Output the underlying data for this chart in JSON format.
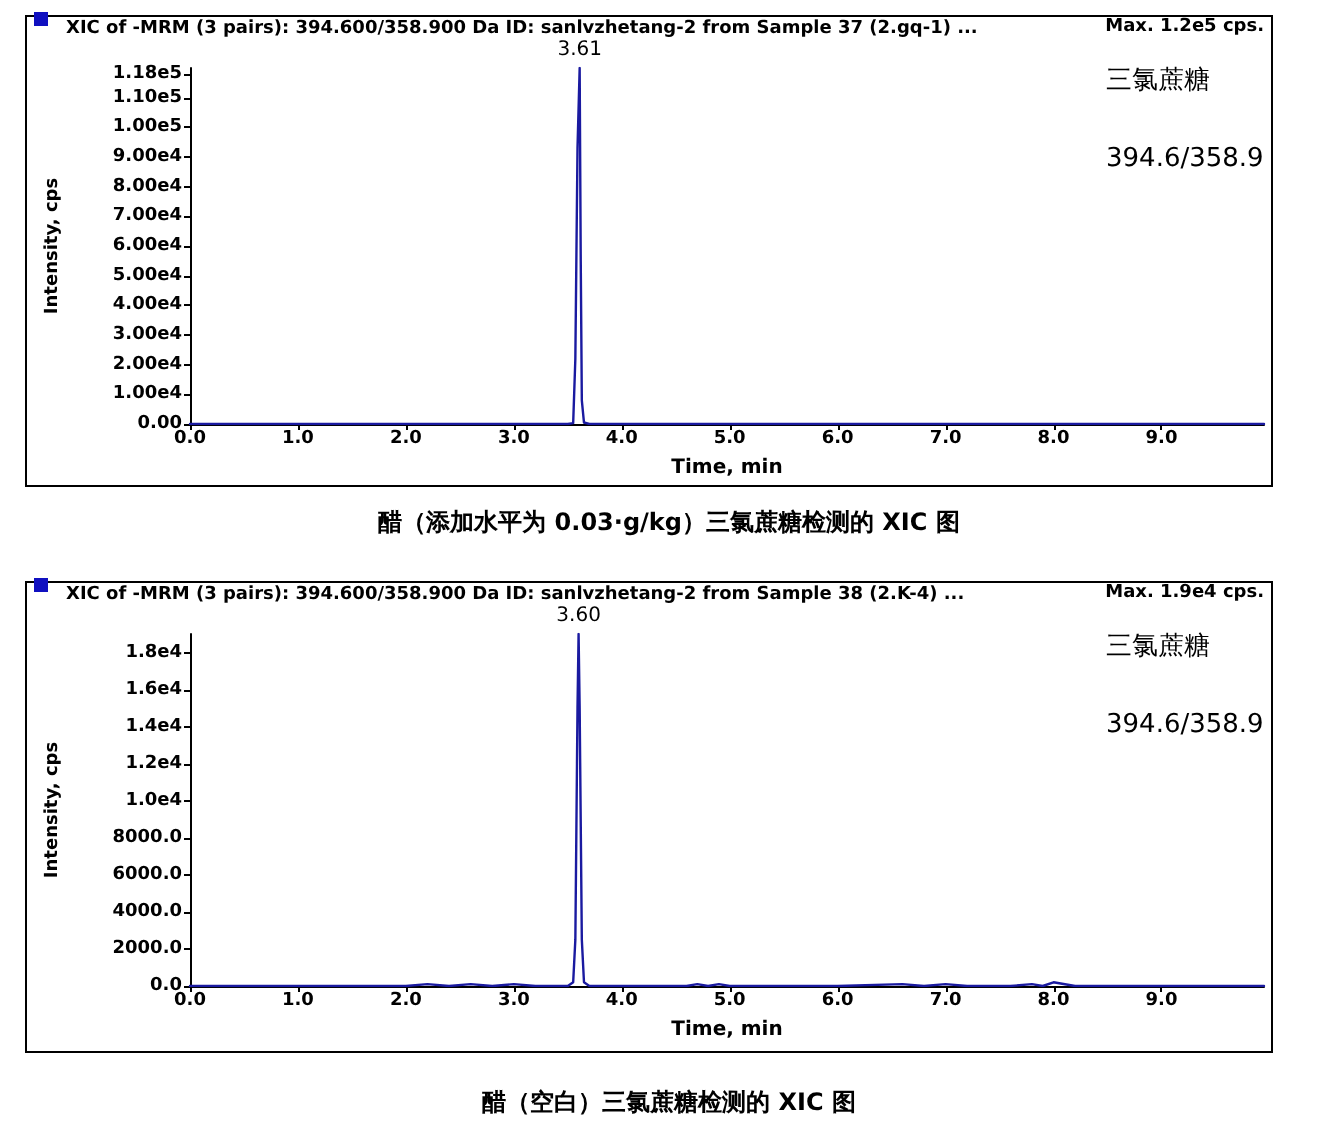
{
  "chart_data": [
    {
      "type": "line",
      "title": "XIC of -MRM (3 pairs): 394.600/358.900 Da ID: sanlvzhetang-2 from Sample 37 (2.gq-1) ...",
      "xlabel": "Time, min",
      "ylabel": "Intensity, cps",
      "x": [
        0,
        1,
        2,
        3,
        3.5,
        3.55,
        3.57,
        3.59,
        3.61,
        3.62,
        3.63,
        3.65,
        3.7,
        4,
        5,
        6,
        7,
        8,
        9,
        9.95
      ],
      "series": [
        {
          "color": "#1a1aa0",
          "values": [
            0,
            0,
            0,
            0,
            0,
            300,
            22000,
            93000,
            120000,
            55000,
            8000,
            500,
            0,
            0,
            0,
            0,
            0,
            0,
            0,
            0
          ]
        }
      ],
      "xlim": [
        0,
        9.95
      ],
      "xticks": [
        {
          "value": 0,
          "label": "0.0"
        },
        {
          "value": 1,
          "label": "1.0"
        },
        {
          "value": 2,
          "label": "2.0"
        },
        {
          "value": 3,
          "label": "3.0"
        },
        {
          "value": 4,
          "label": "4.0"
        },
        {
          "value": 5,
          "label": "5.0"
        },
        {
          "value": 6,
          "label": "6.0"
        },
        {
          "value": 7,
          "label": "7.0"
        },
        {
          "value": 8,
          "label": "8.0"
        },
        {
          "value": 9,
          "label": "9.0"
        }
      ],
      "ylim": [
        0,
        120000
      ],
      "yticks": [
        {
          "value": 0,
          "label": "0.00"
        },
        {
          "value": 10000,
          "label": "1.00e4"
        },
        {
          "value": 20000,
          "label": "2.00e4"
        },
        {
          "value": 30000,
          "label": "3.00e4"
        },
        {
          "value": 40000,
          "label": "4.00e4"
        },
        {
          "value": 50000,
          "label": "5.00e4"
        },
        {
          "value": 60000,
          "label": "6.00e4"
        },
        {
          "value": 70000,
          "label": "7.00e4"
        },
        {
          "value": 80000,
          "label": "8.00e4"
        },
        {
          "value": 90000,
          "label": "9.00e4"
        },
        {
          "value": 100000,
          "label": "1.00e5"
        },
        {
          "value": 110000,
          "label": "1.10e5"
        },
        {
          "value": 118000,
          "label": "1.18e5"
        }
      ],
      "grid": false,
      "marker": "none",
      "line_style": "solid",
      "annotations": [
        "Max. 1.2e5 cps.",
        "三氯蔗糖",
        "394.6/358.9",
        "醋（添加水平为 0.03·g/kg）三氯蔗糖检测的 XIC 图",
        {
          "text": "3.61",
          "x": 3.61,
          "y": 120000
        }
      ]
    },
    {
      "type": "line",
      "title": "XIC of -MRM (3 pairs): 394.600/358.900 Da ID: sanlvzhetang-2 from Sample 38 (2.K-4) ...",
      "xlabel": "Time, min",
      "ylabel": "Intensity, cps",
      "x": [
        0,
        1,
        2,
        2.2,
        2.4,
        2.6,
        2.8,
        3,
        3.2,
        3.5,
        3.55,
        3.57,
        3.59,
        3.6,
        3.61,
        3.63,
        3.65,
        3.7,
        4,
        4.6,
        4.7,
        4.8,
        4.9,
        5,
        6,
        6.6,
        6.8,
        7,
        7.2,
        7.6,
        7.8,
        7.9,
        8,
        8.2,
        9,
        9.95
      ],
      "series": [
        {
          "color": "#1a1aa0",
          "values": [
            0,
            0,
            0,
            100,
            0,
            100,
            0,
            100,
            0,
            0,
            200,
            2500,
            15000,
            19000,
            15000,
            2500,
            200,
            0,
            0,
            0,
            100,
            0,
            100,
            0,
            0,
            100,
            0,
            100,
            0,
            0,
            100,
            0,
            200,
            0,
            0,
            0
          ]
        }
      ],
      "xlim": [
        0,
        9.95
      ],
      "xticks": [
        {
          "value": 0,
          "label": "0.0"
        },
        {
          "value": 1,
          "label": "1.0"
        },
        {
          "value": 2,
          "label": "2.0"
        },
        {
          "value": 3,
          "label": "3.0"
        },
        {
          "value": 4,
          "label": "4.0"
        },
        {
          "value": 5,
          "label": "5.0"
        },
        {
          "value": 6,
          "label": "6.0"
        },
        {
          "value": 7,
          "label": "7.0"
        },
        {
          "value": 8,
          "label": "8.0"
        },
        {
          "value": 9,
          "label": "9.0"
        }
      ],
      "ylim": [
        0,
        19000
      ],
      "yticks": [
        {
          "value": 0,
          "label": "0.0"
        },
        {
          "value": 2000,
          "label": "2000.0"
        },
        {
          "value": 4000,
          "label": "4000.0"
        },
        {
          "value": 6000,
          "label": "6000.0"
        },
        {
          "value": 8000,
          "label": "8000.0"
        },
        {
          "value": 10000,
          "label": "1.0e4"
        },
        {
          "value": 12000,
          "label": "1.2e4"
        },
        {
          "value": 14000,
          "label": "1.4e4"
        },
        {
          "value": 16000,
          "label": "1.6e4"
        },
        {
          "value": 18000,
          "label": "1.8e4"
        }
      ],
      "grid": false,
      "marker": "none",
      "line_style": "solid",
      "annotations": [
        "Max. 1.9e4 cps.",
        "三氯蔗糖",
        "394.6/358.9",
        "醋（空白）三氯蔗糖检测的 XIC 图",
        {
          "text": "3.60",
          "x": 3.6,
          "y": 19000
        }
      ]
    }
  ]
}
